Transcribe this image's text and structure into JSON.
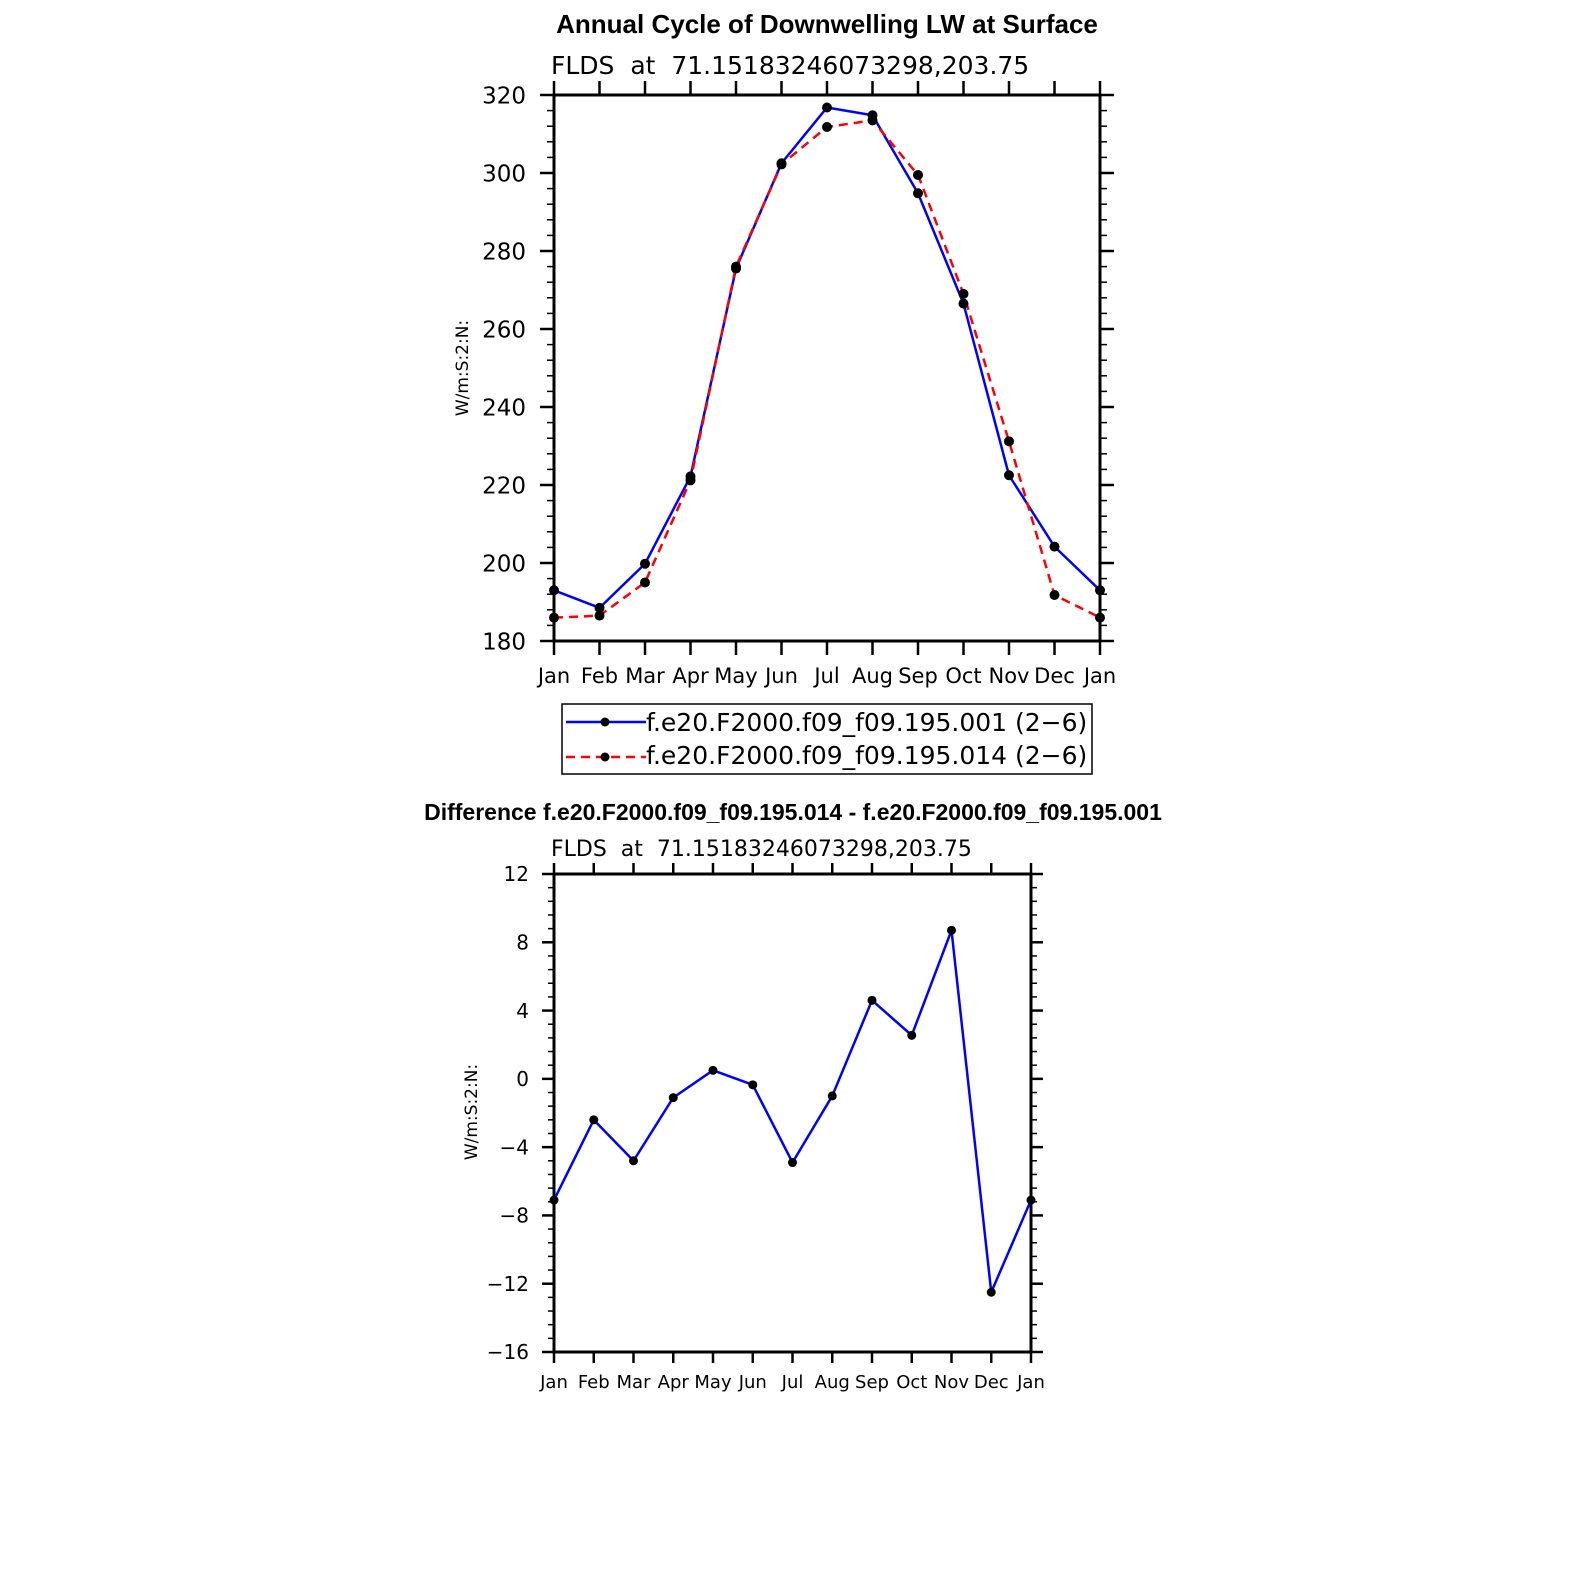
{
  "chart_data": [
    {
      "type": "line",
      "title": "Annual Cycle of Downwelling LW at Surface",
      "subtitle": "FLDS  at  71.15183246073298,203.75",
      "ylabel": "W/m:S:2:N:",
      "xlabel": "",
      "categories": [
        "Jan",
        "Feb",
        "Mar",
        "Apr",
        "May",
        "Jun",
        "Jul",
        "Aug",
        "Sep",
        "Oct",
        "Nov",
        "Dec",
        "Jan"
      ],
      "ylim": [
        180,
        320
      ],
      "yticks": [
        180,
        200,
        220,
        240,
        260,
        280,
        300,
        320
      ],
      "grid": false,
      "legend_position": "bottom",
      "series": [
        {
          "name": "f.e20.F2000.f09_f09.195.001 (2−6)",
          "color": "#0000ff",
          "dash": "solid",
          "values": [
            193.0,
            188.5,
            199.8,
            222.2,
            275.5,
            302.5,
            316.8,
            314.8,
            294.8,
            266.5,
            222.5,
            204.2,
            193.0
          ]
        },
        {
          "name": "f.e20.F2000.f09_f09.195.014 (2−6)",
          "color": "#ff0000",
          "dash": "dashed",
          "values": [
            186.0,
            186.5,
            195.0,
            221.2,
            276.0,
            302.2,
            311.8,
            313.5,
            299.5,
            269.0,
            231.2,
            191.8,
            186.0
          ]
        }
      ]
    },
    {
      "type": "line",
      "title": "Difference f.e20.F2000.f09_f09.195.014 - f.e20.F2000.f09_f09.195.001",
      "subtitle": "FLDS  at  71.15183246073298,203.75",
      "ylabel": "W/m:S:2:N:",
      "xlabel": "",
      "categories": [
        "Jan",
        "Feb",
        "Mar",
        "Apr",
        "May",
        "Jun",
        "Jul",
        "Aug",
        "Sep",
        "Oct",
        "Nov",
        "Dec",
        "Jan"
      ],
      "ylim": [
        -16,
        12
      ],
      "yticks": [
        -16,
        -12,
        -8,
        -4,
        0,
        4,
        8,
        12
      ],
      "grid": false,
      "series": [
        {
          "color": "#0000ff",
          "dash": "solid",
          "values": [
            -7.1,
            -2.4,
            -4.8,
            -1.1,
            0.5,
            -0.35,
            -4.9,
            -1.0,
            4.6,
            2.55,
            8.7,
            -12.5,
            -7.1
          ]
        }
      ]
    }
  ]
}
